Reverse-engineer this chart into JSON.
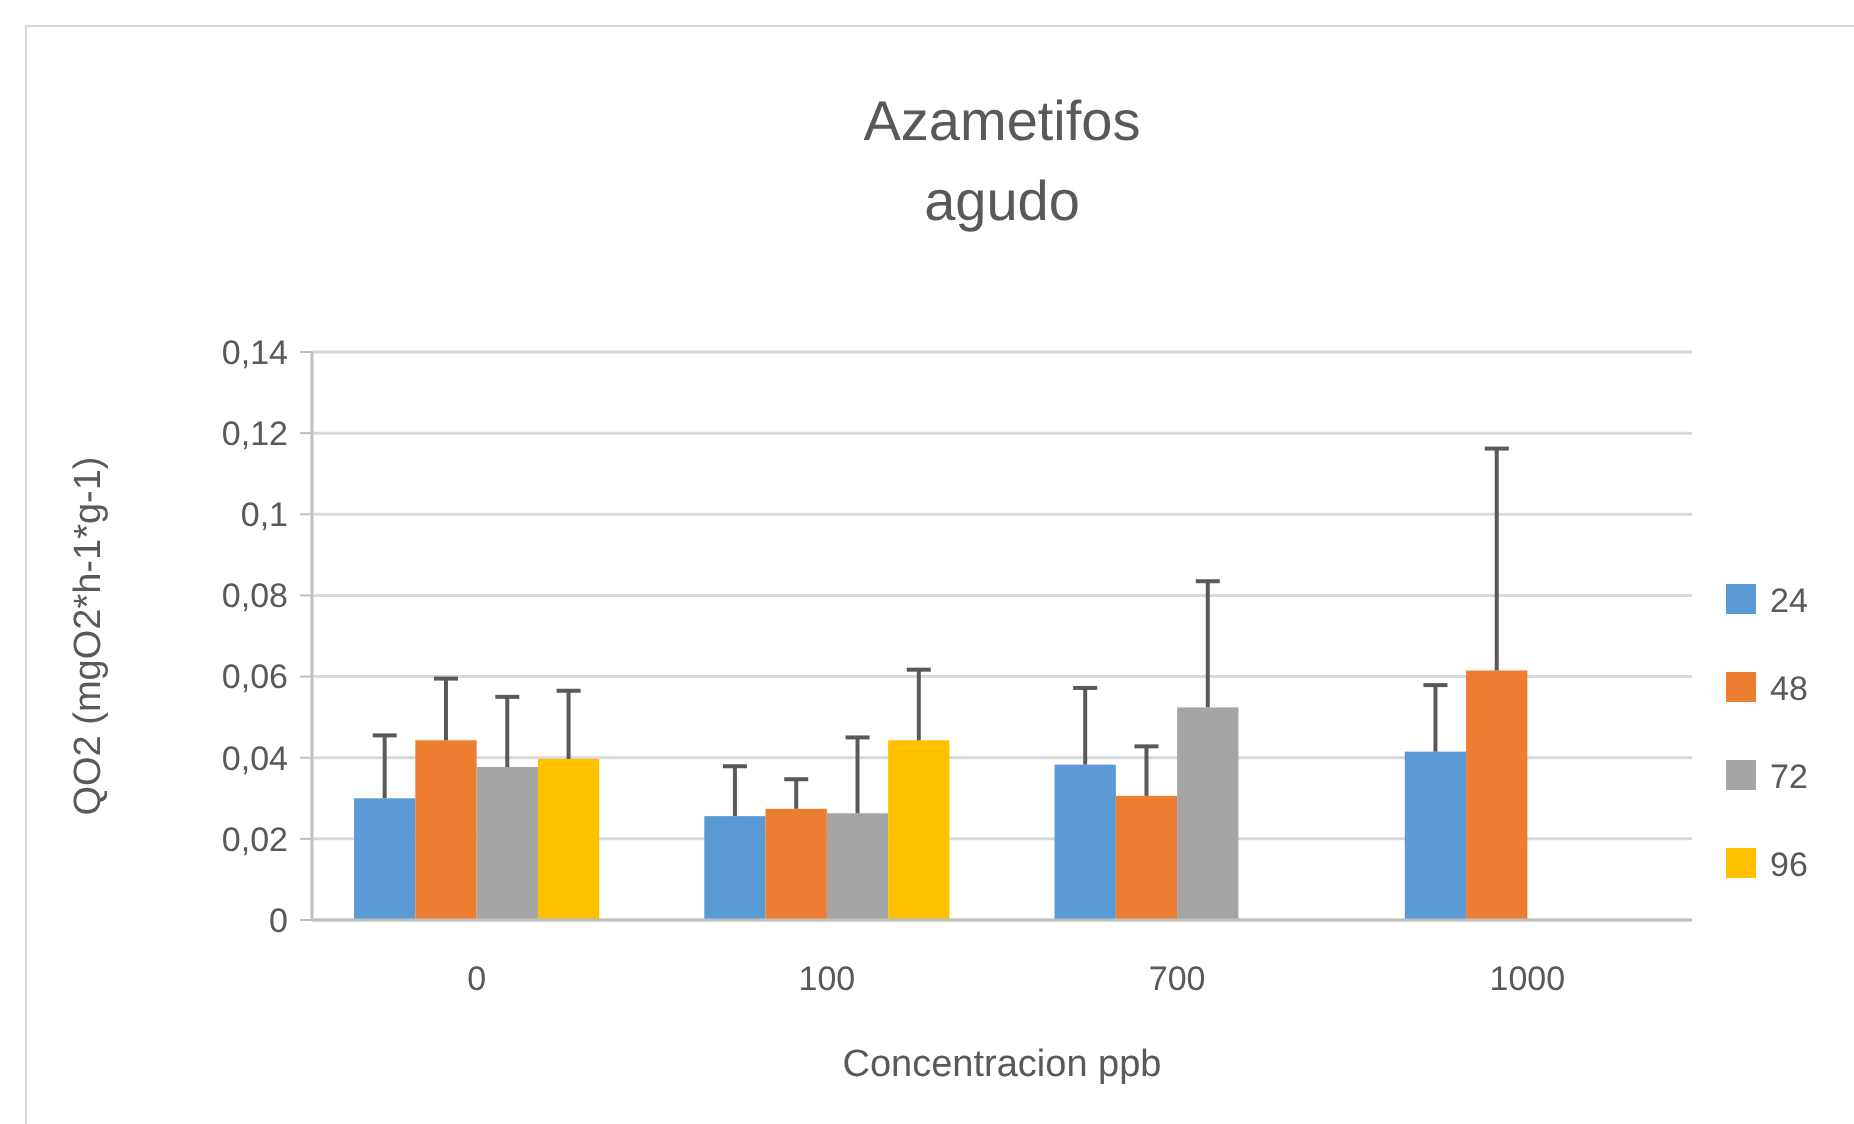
{
  "chart_data": {
    "type": "bar",
    "title": "Azametifos\nagudo",
    "xlabel": "Concentracion ppb",
    "ylabel": "QO2 (mgO2*h-1*g-1)",
    "categories": [
      "0",
      "100",
      "700",
      "1000"
    ],
    "series": [
      {
        "name": "24",
        "color": "#5b9bd5",
        "values": [
          0.03,
          0.0256,
          0.0383,
          0.0415
        ],
        "errors": [
          [
            0.03,
            0.0455
          ],
          [
            0.0256,
            0.0379
          ],
          [
            0.0383,
            0.0572
          ],
          [
            0.0415,
            0.0579
          ]
        ]
      },
      {
        "name": "48",
        "color": "#ed7d31",
        "values": [
          0.0443,
          0.0274,
          0.0306,
          0.0615
        ],
        "errors": [
          [
            0.0443,
            0.0595
          ],
          [
            0.0274,
            0.0347
          ],
          [
            0.0306,
            0.0428
          ],
          [
            0.0615,
            0.1162
          ]
        ]
      },
      {
        "name": "72",
        "color": "#a5a5a5",
        "values": [
          0.0377,
          0.0263,
          0.0524,
          null
        ],
        "errors": [
          [
            0.0377,
            0.055
          ],
          [
            0.0263,
            0.045
          ],
          [
            0.0524,
            0.0835
          ],
          null
        ]
      },
      {
        "name": "96",
        "color": "#ffc000",
        "values": [
          0.0397,
          0.0443,
          null,
          null
        ],
        "errors": [
          [
            0.0397,
            0.0565
          ],
          [
            0.0443,
            0.0617
          ],
          null,
          null
        ]
      }
    ],
    "ylim": [
      0,
      0.14
    ],
    "yticks": [
      0,
      {
        "value": 0.02,
        "label": "0,02"
      },
      {
        "value": 0.04,
        "label": "0,04"
      },
      {
        "value": 0.06,
        "label": "0,06"
      },
      {
        "value": 0.08,
        "label": "0,08"
      },
      {
        "value": 0.1,
        "label": "0,1"
      },
      {
        "value": 0.12,
        "label": "0,12"
      },
      {
        "value": 0.14,
        "label": "0,14"
      }
    ],
    "grid": "y",
    "legend": "right"
  }
}
